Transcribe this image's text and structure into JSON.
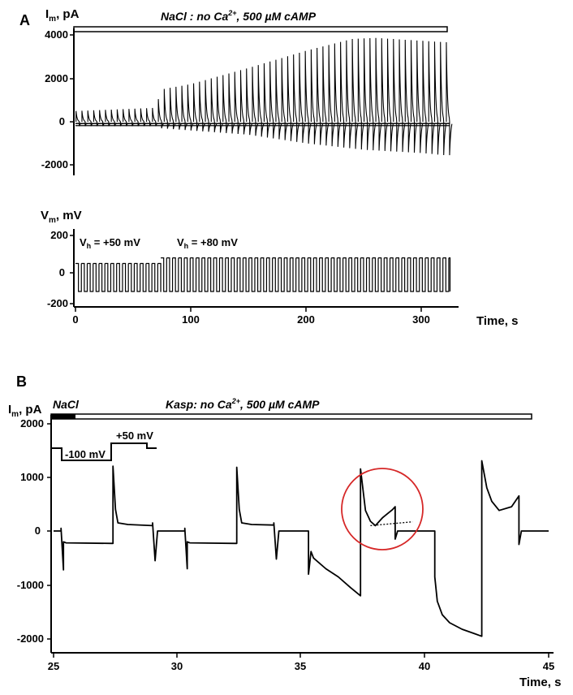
{
  "chart_data": [
    {
      "panel": "A",
      "type": "line",
      "title": "NaCl :  no Ca2+,  500 µM  cAMP",
      "xlabel": "Time, s",
      "xlim": [
        0,
        340
      ],
      "xticks": [
        "0",
        "100",
        "200",
        "300"
      ],
      "current": {
        "ylabel": "Im, pA",
        "ylim": [
          -2400,
          4200
        ],
        "yticks": [
          "4000",
          "2000",
          "0",
          "-2000"
        ],
        "pulse_period_s": 5.1,
        "step_1_end_s": 74,
        "recording_end_s": 325,
        "series": [
          {
            "values": {
              "x": [
                0,
                70,
                74,
                100,
                150,
                200,
                240,
                260,
                290,
                320
              ],
              "y": [
                500,
                650,
                1500,
                1750,
                2500,
                3300,
                3850,
                3900,
                3800,
                3700
              ]
            }
          },
          {
            "values": {
              "x": [
                0,
                70,
                74,
                150,
                200,
                250,
                300,
                320
              ],
              "y": [
                -200,
                -200,
                -300,
                -600,
                -1000,
                -1300,
                -1450,
                -1550
              ]
            }
          }
        ]
      },
      "voltage": {
        "ylabel": "Vm, mV",
        "ylim": [
          -220,
          230
        ],
        "yticks": [
          "200",
          "0",
          "-200"
        ],
        "steps": [
          {
            "label": "Vh = +50 mV",
            "from_s": 0,
            "to_s": 74,
            "high_mV": 50,
            "low_mV": -100
          },
          {
            "label": "Vh = +80 mV",
            "from_s": 74,
            "to_s": 325,
            "high_mV": 80,
            "low_mV": -100
          }
        ]
      }
    },
    {
      "panel": "B",
      "type": "line",
      "title": "Kasp:  no Ca2+,  500 µM  cAMP",
      "solution_bar": "NaCl",
      "xlabel": "Time, s",
      "ylabel": "Im, pA",
      "xlim": [
        25,
        45
      ],
      "ylim": [
        -2100,
        2150
      ],
      "xticks": [
        "25",
        "30",
        "35",
        "40",
        "45"
      ],
      "yticks": [
        "2000",
        "1000",
        "0",
        "-1000",
        "-2000"
      ],
      "protocol_labels": [
        "-100 mV",
        "+50 mV"
      ],
      "series": [
        {
          "values": {
            "x": [
              25.0,
              25.3,
              25.3,
              25.4,
              25.4,
              25.5,
              27.4,
              27.4,
              27.5,
              27.6,
              28.0,
              29.0,
              29.0,
              29.1,
              29.2,
              30.3,
              30.3,
              30.4,
              30.4,
              30.5,
              32.4,
              32.4,
              32.5,
              32.6,
              33.0,
              33.9,
              33.9,
              34.0,
              34.1,
              35.3,
              35.3,
              35.4,
              35.5,
              36.0,
              36.5,
              37.0,
              37.4,
              37.4,
              37.6,
              37.8,
              38.0,
              38.3,
              38.7,
              38.8,
              38.8,
              38.9,
              39.5,
              40.4,
              40.4,
              40.5,
              40.7,
              41.0,
              41.5,
              42.0,
              42.3,
              42.3,
              42.5,
              42.7,
              43.0,
              43.5,
              43.8,
              43.8,
              43.9,
              44.5,
              45.0
            ],
            "y": [
              0,
              0,
              50,
              -720,
              -200,
              -220,
              -230,
              1200,
              400,
              150,
              120,
              100,
              150,
              -550,
              0,
              0,
              50,
              -700,
              -200,
              -220,
              -230,
              1180,
              400,
              150,
              120,
              110,
              150,
              -520,
              0,
              0,
              -800,
              -380,
              -500,
              -700,
              -850,
              -1050,
              -1200,
              1150,
              380,
              180,
              100,
              250,
              400,
              450,
              -150,
              0,
              0,
              0,
              -850,
              -1300,
              -1550,
              -1700,
              -1820,
              -1900,
              -1950,
              1300,
              800,
              550,
              380,
              450,
              650,
              -250,
              0,
              0,
              0
            ]
          }
        },
        {
          "values": {
            "x": [
              37.8,
              39.5
            ],
            "y": [
              100,
              170
            ]
          }
        }
      ]
    }
  ]
}
